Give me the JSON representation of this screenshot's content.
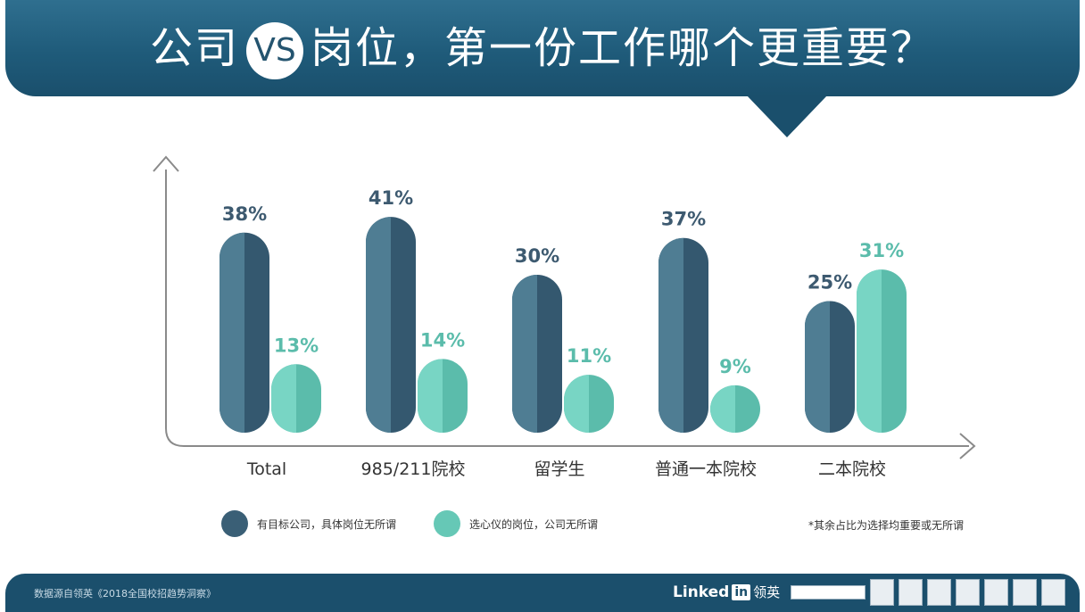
{
  "title": {
    "before": "公司",
    "vs": "VS",
    "after": "岗位，第一份工作哪个更重要？"
  },
  "chart_data": {
    "type": "bar",
    "categories": [
      "Total",
      "985/211院校",
      "留学生",
      "普通一本院校",
      "二本院校"
    ],
    "series": [
      {
        "name": "有目标公司，具体岗位无所谓",
        "values": [
          38,
          41,
          30,
          37,
          25
        ],
        "labels": [
          "38%",
          "41%",
          "30%",
          "37%",
          "25%"
        ]
      },
      {
        "name": "选心仪的岗位，公司无所谓",
        "values": [
          13,
          14,
          11,
          9,
          31
        ],
        "labels": [
          "13%",
          "14%",
          "11%",
          "9%",
          "31%"
        ]
      }
    ],
    "ylim": [
      0,
      45
    ],
    "unit": "%",
    "colors": {
      "series1_light": "#4f7d93",
      "series1_dark": "#34586f",
      "series2_light": "#78d5c4",
      "series2_dark": "#5bbcab",
      "series1_text": "#3d5a70",
      "series2_text": "#5bbcab",
      "axis": "#8a8a8a"
    }
  },
  "note": "*其余占比为选择均重要或无所谓",
  "footer": {
    "source": "数据源自领英《2018全国校招趋势洞察》",
    "brand_prefix": "Linked",
    "brand_in": "in",
    "brand_cn": "领英"
  }
}
